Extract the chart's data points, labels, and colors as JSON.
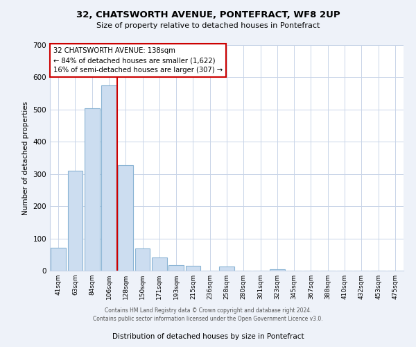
{
  "title": "32, CHATSWORTH AVENUE, PONTEFRACT, WF8 2UP",
  "subtitle": "Size of property relative to detached houses in Pontefract",
  "xlabel": "Distribution of detached houses by size in Pontefract",
  "ylabel": "Number of detached properties",
  "bar_labels": [
    "41sqm",
    "63sqm",
    "84sqm",
    "106sqm",
    "128sqm",
    "150sqm",
    "171sqm",
    "193sqm",
    "215sqm",
    "236sqm",
    "258sqm",
    "280sqm",
    "301sqm",
    "323sqm",
    "345sqm",
    "367sqm",
    "388sqm",
    "410sqm",
    "432sqm",
    "453sqm",
    "475sqm"
  ],
  "bar_values": [
    72,
    310,
    505,
    575,
    328,
    68,
    40,
    18,
    15,
    0,
    12,
    0,
    0,
    5,
    0,
    0,
    0,
    0,
    0,
    0,
    0
  ],
  "bar_color": "#ccddf0",
  "bar_edge_color": "#8ab4d4",
  "highlight_line_color": "#cc0000",
  "annotation_title": "32 CHATSWORTH AVENUE: 138sqm",
  "annotation_line1": "← 84% of detached houses are smaller (1,622)",
  "annotation_line2": "16% of semi-detached houses are larger (307) →",
  "annotation_box_color": "#ffffff",
  "annotation_box_edge": "#cc0000",
  "ylim": [
    0,
    700
  ],
  "yticks": [
    0,
    100,
    200,
    300,
    400,
    500,
    600,
    700
  ],
  "footer1": "Contains HM Land Registry data © Crown copyright and database right 2024.",
  "footer2": "Contains public sector information licensed under the Open Government Licence v3.0.",
  "background_color": "#eef2f9",
  "plot_bg_color": "#ffffff",
  "grid_color": "#c8d4e8"
}
